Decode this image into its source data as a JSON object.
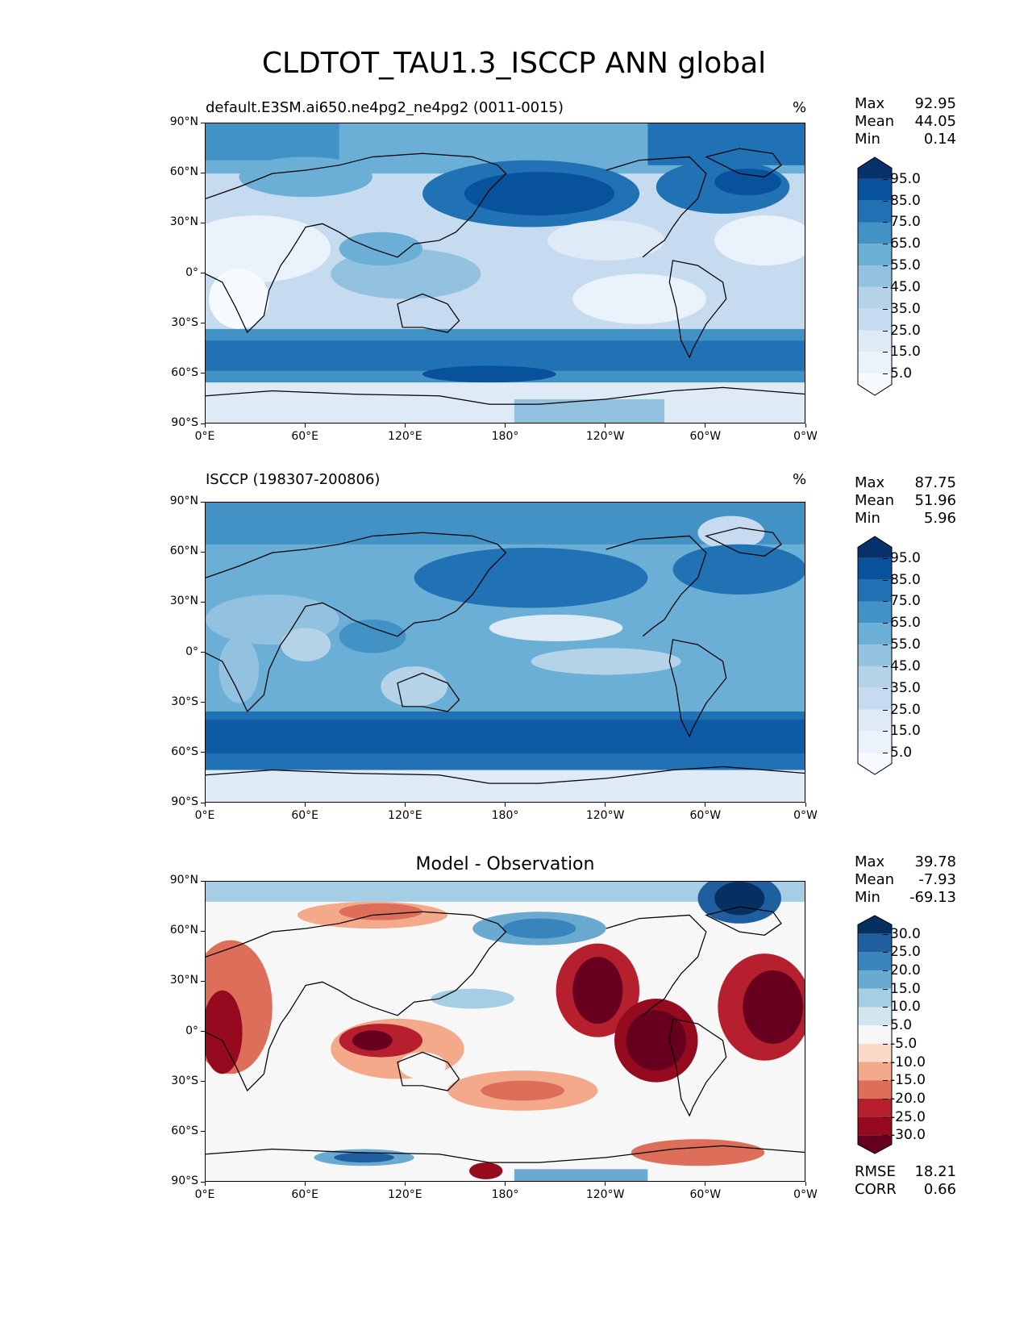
{
  "title": "CLDTOT_TAU1.3_ISCCP ANN global",
  "lon_ticks": [
    "0°E",
    "60°E",
    "120°E",
    "180°",
    "120°W",
    "60°W",
    "0°W"
  ],
  "lat_ticks": [
    "90°N",
    "60°N",
    "30°N",
    "0°",
    "30°S",
    "60°S",
    "90°S"
  ],
  "panels": [
    {
      "name": "test",
      "title": "default.E3SM.ai650.ne4pg2_ne4pg2 (0011-0015)",
      "units": "%",
      "stats": [
        {
          "label": "Max",
          "value": "92.95"
        },
        {
          "label": "Mean",
          "value": "44.05"
        },
        {
          "label": "Min",
          "value": "0.14"
        }
      ],
      "colorbar_labels": [
        "95.0",
        "85.0",
        "75.0",
        "65.0",
        "55.0",
        "45.0",
        "35.0",
        "25.0",
        "15.0",
        "5.0"
      ],
      "colorbar_colors": [
        "#08306b",
        "#08519c",
        "#2171b5",
        "#4292c6",
        "#6baed6",
        "#92c2df",
        "#b4d3e9",
        "#c6dbef",
        "#deebf7",
        "#eaf2fb",
        "#f7fbff"
      ]
    },
    {
      "name": "reference",
      "title": "ISCCP (198307-200806)",
      "units": "%",
      "stats": [
        {
          "label": "Max",
          "value": "87.75"
        },
        {
          "label": "Mean",
          "value": "51.96"
        },
        {
          "label": "Min",
          "value": "5.96"
        }
      ],
      "colorbar_labels": [
        "95.0",
        "85.0",
        "75.0",
        "65.0",
        "55.0",
        "45.0",
        "35.0",
        "25.0",
        "15.0",
        "5.0"
      ],
      "colorbar_colors": [
        "#08306b",
        "#08519c",
        "#2171b5",
        "#4292c6",
        "#6baed6",
        "#92c2df",
        "#b4d3e9",
        "#c6dbef",
        "#deebf7",
        "#eaf2fb",
        "#f7fbff"
      ]
    },
    {
      "name": "difference",
      "title": "Model - Observation",
      "units": "",
      "stats": [
        {
          "label": "Max",
          "value": "39.78"
        },
        {
          "label": "Mean",
          "value": "-7.93"
        },
        {
          "label": "Min",
          "value": "-69.13"
        }
      ],
      "colorbar_labels": [
        "30.0",
        "25.0",
        "20.0",
        "15.0",
        "10.0",
        "5.0",
        "-5.0",
        "-10.0",
        "-15.0",
        "-20.0",
        "-25.0",
        "-30.0"
      ],
      "colorbar_colors": [
        "#053061",
        "#1f5fa0",
        "#3a84bd",
        "#6aa9d0",
        "#a5cde3",
        "#d3e6f0",
        "#f7f7f7",
        "#fbdac9",
        "#f4a98a",
        "#dc6e5a",
        "#b51f2e",
        "#960a1f",
        "#67001f"
      ],
      "metrics": [
        {
          "label": "RMSE",
          "value": "18.21"
        },
        {
          "label": "CORR",
          "value": "0.66"
        }
      ]
    }
  ]
}
